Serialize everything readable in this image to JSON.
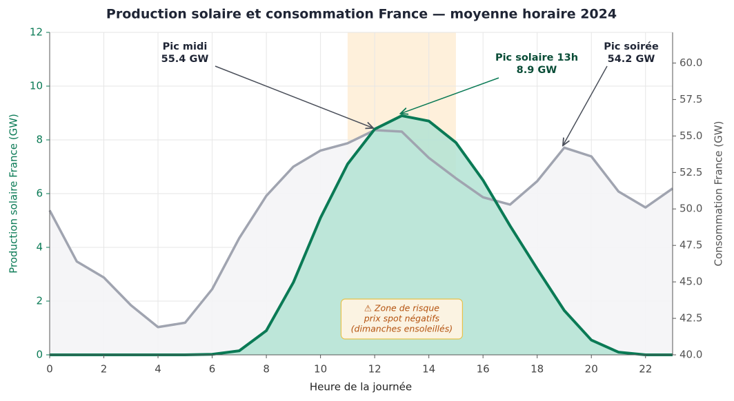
{
  "chart_data": {
    "type": "line",
    "title": "Production solaire et consommation France — moyenne horaire 2024",
    "x_label": "Heure de la journée",
    "y_label": "Production solaire France (GW)",
    "y2_label": "Consommation France (GW)",
    "x": [
      0,
      1,
      2,
      3,
      4,
      5,
      6,
      7,
      8,
      9,
      10,
      11,
      12,
      13,
      14,
      15,
      16,
      17,
      18,
      19,
      20,
      21,
      22,
      23
    ],
    "xlim": [
      0,
      23
    ],
    "xticks": [
      0,
      2,
      4,
      6,
      8,
      10,
      12,
      14,
      16,
      18,
      20,
      22
    ],
    "ylim": [
      0,
      12
    ],
    "yticks": [
      0,
      2,
      4,
      6,
      8,
      10,
      12
    ],
    "y2lim": [
      40,
      62.1
    ],
    "y2ticks": [
      {
        "value": 40,
        "label": "40.0"
      },
      {
        "value": 42.5,
        "label": "42.5"
      },
      {
        "value": 45,
        "label": "45.0"
      },
      {
        "value": 47.5,
        "label": "47.5"
      },
      {
        "value": 50,
        "label": "50.0"
      },
      {
        "value": 52.5,
        "label": "52.5"
      },
      {
        "value": 55,
        "label": "55.0"
      },
      {
        "value": 57.5,
        "label": "57.5"
      },
      {
        "value": 60,
        "label": "60.0"
      }
    ],
    "grid": true,
    "highlight_span": [
      11,
      15
    ],
    "series": [
      {
        "name": "Production solaire France",
        "color": "#0a7a55",
        "fill": "#b3e3d3",
        "values": [
          0,
          0,
          0,
          0,
          0,
          0,
          0.02,
          0.15,
          0.9,
          2.7,
          5.1,
          7.1,
          8.4,
          8.9,
          8.7,
          7.9,
          6.5,
          4.8,
          3.2,
          1.65,
          0.55,
          0.1,
          0,
          0
        ]
      },
      {
        "name": "Consommation France",
        "color": "#a0a4b0",
        "fill": "#f4f4f6",
        "axis": "y2",
        "values": [
          49.9,
          46.4,
          45.3,
          43.4,
          41.9,
          42.2,
          44.5,
          48.0,
          50.9,
          52.9,
          54.0,
          54.5,
          55.4,
          55.3,
          53.5,
          52.1,
          50.8,
          50.3,
          51.9,
          54.2,
          53.6,
          51.2,
          50.1,
          51.4
        ]
      }
    ],
    "annotations": [
      {
        "lines": [
          "Pic midi",
          "55.4 GW"
        ]
      },
      {
        "lines": [
          "Pic solaire 13h",
          "8.9 GW"
        ]
      },
      {
        "lines": [
          "Pic soirée",
          "54.2 GW"
        ]
      },
      {
        "lines": [
          "⚠ Zone de risque",
          "prix spot négatifs",
          "(dimanches ensoleillés)"
        ]
      }
    ]
  }
}
